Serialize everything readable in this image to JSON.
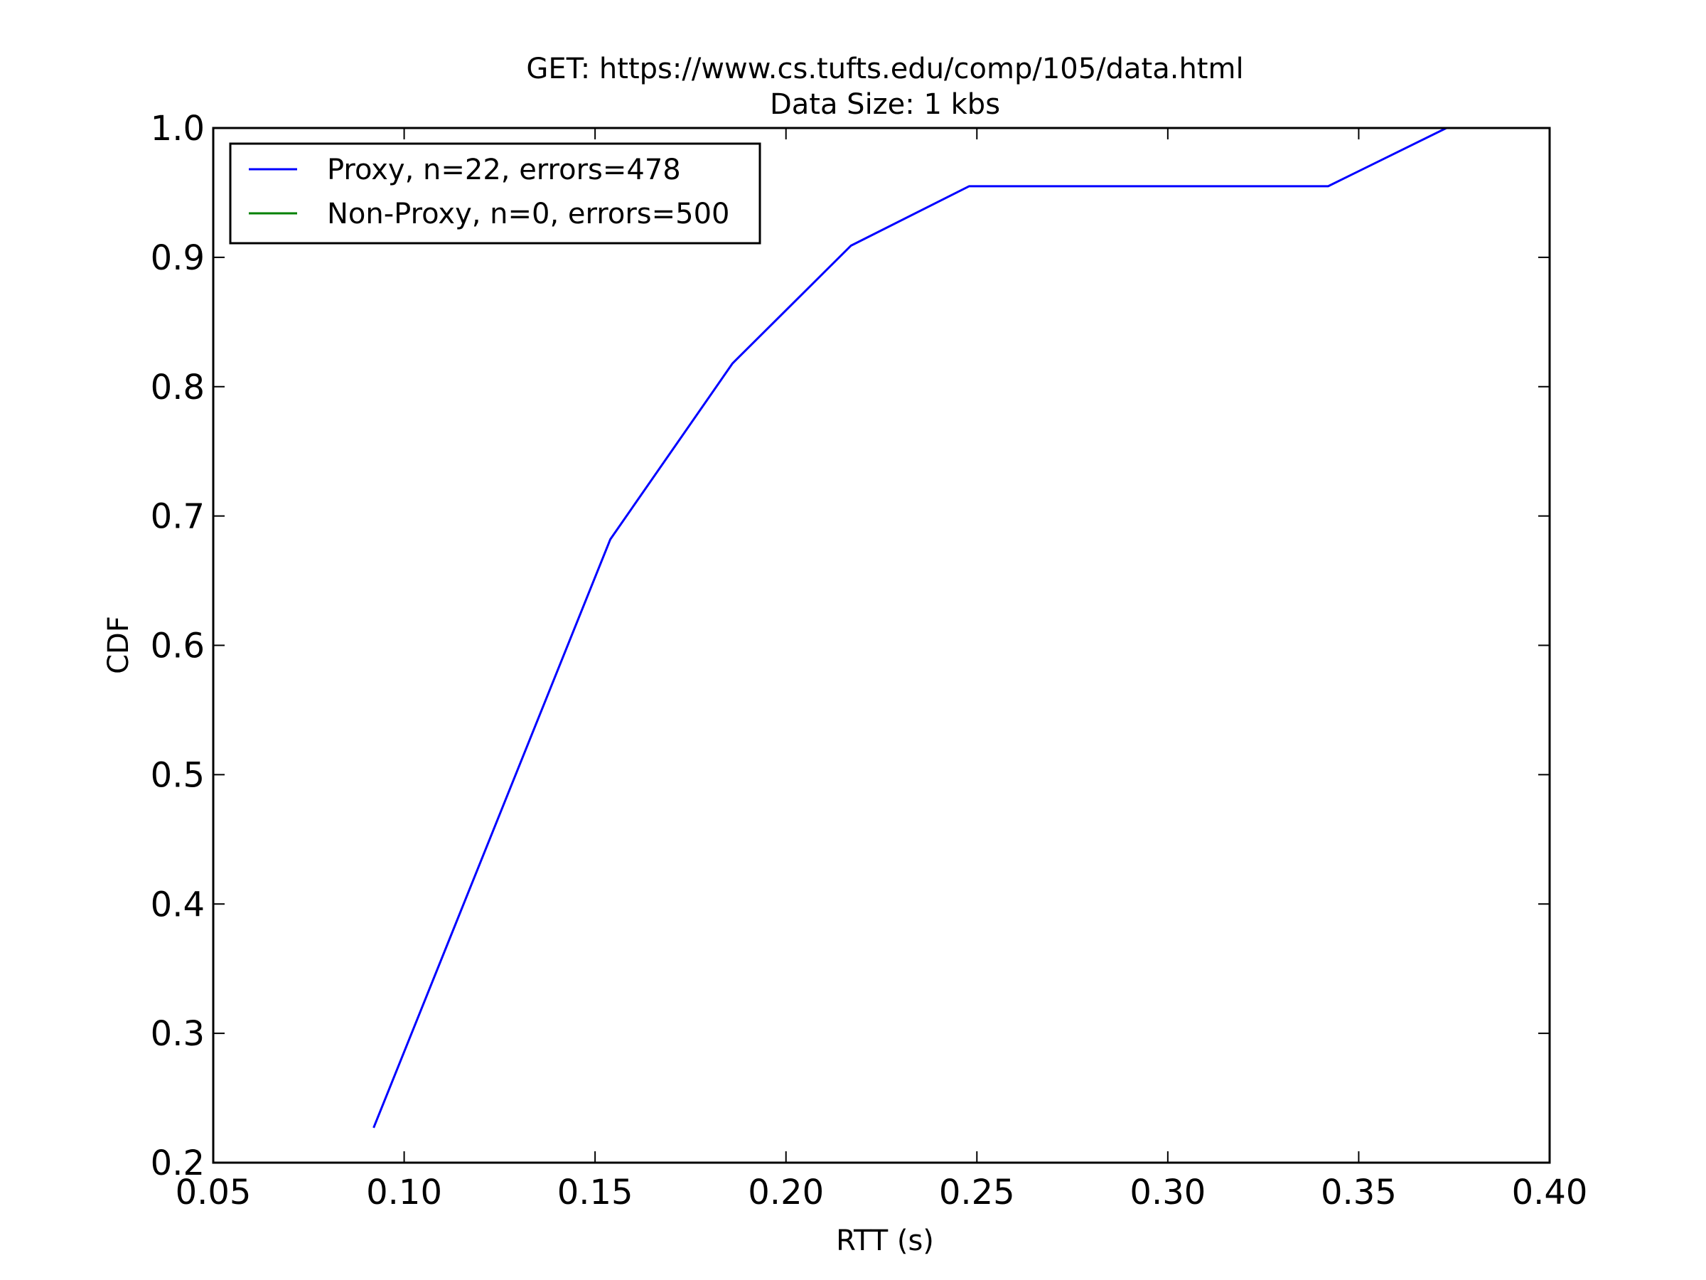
{
  "chart_data": {
    "type": "line",
    "title": "GET: https://www.cs.tufts.edu/comp/105/data.html",
    "subtitle": "Data Size: 1 kbs",
    "xlabel": "RTT (s)",
    "ylabel": "CDF",
    "xlim": [
      0.05,
      0.4
    ],
    "ylim": [
      0.2,
      1.0
    ],
    "xticks": [
      "0.05",
      "0.10",
      "0.15",
      "0.20",
      "0.25",
      "0.30",
      "0.35",
      "0.40"
    ],
    "yticks": [
      "0.2",
      "0.3",
      "0.4",
      "0.5",
      "0.6",
      "0.7",
      "0.8",
      "0.9",
      "1.0"
    ],
    "grid": false,
    "legend_position": "top-left",
    "series": [
      {
        "name": "Proxy, n=22, errors=478",
        "color": "#0000ff",
        "x": [
          0.092,
          0.154,
          0.186,
          0.217,
          0.248,
          0.342,
          0.373
        ],
        "y": [
          0.227,
          0.682,
          0.818,
          0.909,
          0.955,
          0.955,
          1.0
        ]
      },
      {
        "name": "Non-Proxy, n=0, errors=500",
        "color": "#008000",
        "x": [],
        "y": []
      }
    ]
  }
}
